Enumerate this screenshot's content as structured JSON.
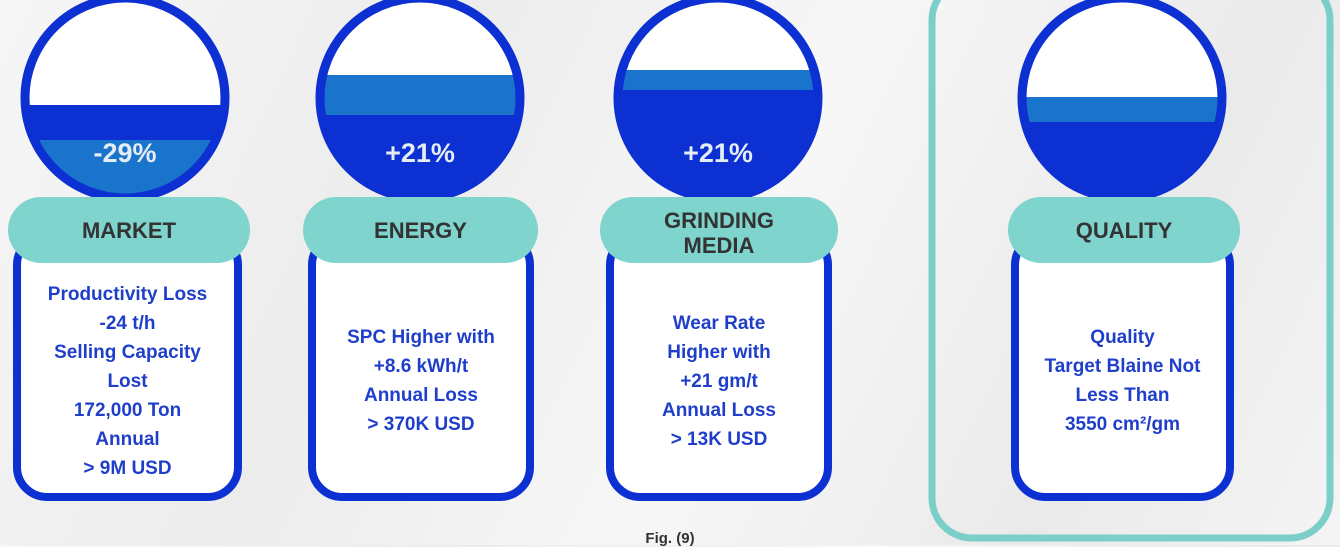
{
  "cards": [
    {
      "percent": "-29%",
      "label": [
        "MARKET"
      ],
      "lines": [
        "Productivity Loss",
        "-24 t/h",
        "Selling Capacity",
        "Lost",
        "172,000 Ton",
        "Annual",
        "> 9M USD"
      ]
    },
    {
      "percent": "+21%",
      "label": [
        "ENERGY"
      ],
      "lines": [
        "SPC Higher with",
        "+8.6 kWh/t",
        "Annual Loss",
        "> 370K USD"
      ]
    },
    {
      "percent": "+21%",
      "label": [
        "GRINDING",
        "MEDIA"
      ],
      "lines": [
        "Wear Rate",
        "Higher with",
        "+21 gm/t",
        "Annual Loss",
        "> 13K USD"
      ]
    },
    {
      "label": [
        "QUALITY"
      ],
      "lines": [
        "Quality",
        "Target Blaine Not",
        "Less Than",
        "3550 cm²/gm"
      ]
    }
  ],
  "caption": "Fig. (9)"
}
